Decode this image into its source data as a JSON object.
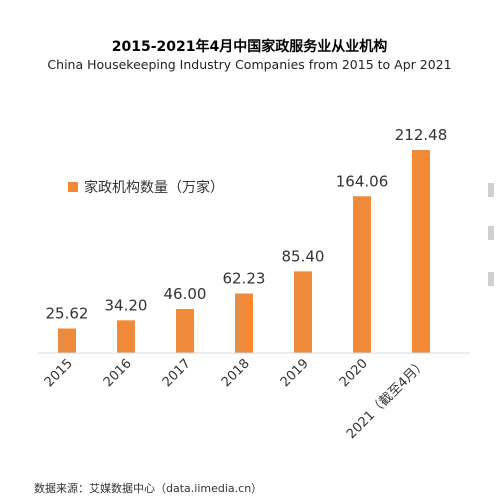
{
  "header": {
    "title": "2015-2021年4月中国家政服务业从业机构",
    "subtitle": "China Housekeeping  Industry Companies from 2015 to Apr 2021"
  },
  "source": "数据来源：艾媒数据中心（data.iimedia.cn）",
  "colors": {
    "bar": "#EE8A3A",
    "baseline": "#d9d9d9",
    "text": "#333333"
  },
  "chart_data": {
    "type": "bar",
    "categories": [
      "2015",
      "2016",
      "2017",
      "2018",
      "2019",
      "2020",
      "2021（截至4月）"
    ],
    "series": [
      {
        "name": "家政机构数量（万家）",
        "values": [
          25.62,
          34.2,
          46.0,
          62.23,
          85.4,
          164.06,
          212.48
        ]
      }
    ],
    "data_labels": [
      "25.62",
      "34.20",
      "46.00",
      "62.23",
      "85.40",
      "164.06",
      "212.48"
    ],
    "ylim": [
      0,
      212.48
    ],
    "grid": false,
    "legend_position": "top-left"
  }
}
